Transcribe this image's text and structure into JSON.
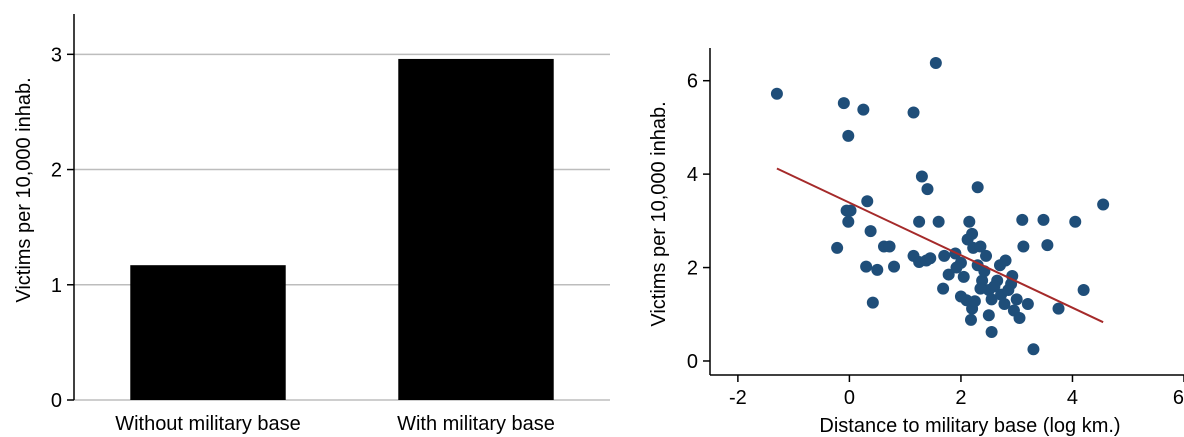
{
  "chart_data": [
    {
      "type": "bar",
      "categories": [
        "Without military base",
        "With military base"
      ],
      "values": [
        1.17,
        2.96
      ],
      "ylabel": "Victims per 10,000 inhab.",
      "xlabel": "",
      "ylim": [
        0,
        3.35
      ],
      "yticks": [
        0,
        1,
        2,
        3
      ],
      "grid": true,
      "bar_color": "#000000",
      "grid_color": "#bdbdbd"
    },
    {
      "type": "scatter",
      "xlabel": "Distance to military base (log km.)",
      "ylabel": "Victims per 10,000 inhab.",
      "xlim": [
        -2.5,
        6
      ],
      "ylim": [
        -0.3,
        6.7
      ],
      "xticks": [
        -2,
        0,
        2,
        4,
        6
      ],
      "yticks": [
        0,
        2,
        4,
        6
      ],
      "grid": false,
      "point_color": "#1f4e79",
      "fit_color": "#a52a2a",
      "fit_line": {
        "x": [
          -1.3,
          4.55
        ],
        "y": [
          4.12,
          0.83
        ]
      },
      "points": [
        [
          -1.3,
          5.72
        ],
        [
          -0.1,
          5.52
        ],
        [
          0.25,
          5.38
        ],
        [
          -0.02,
          4.82
        ],
        [
          1.55,
          6.38
        ],
        [
          1.15,
          5.32
        ],
        [
          1.3,
          3.95
        ],
        [
          1.4,
          3.68
        ],
        [
          2.3,
          3.72
        ],
        [
          0.32,
          3.42
        ],
        [
          -0.05,
          3.22
        ],
        [
          0.02,
          3.22
        ],
        [
          -0.02,
          2.98
        ],
        [
          0.38,
          2.78
        ],
        [
          0.62,
          2.45
        ],
        [
          0.72,
          2.45
        ],
        [
          -0.22,
          2.42
        ],
        [
          0.3,
          2.02
        ],
        [
          0.5,
          1.95
        ],
        [
          0.8,
          2.02
        ],
        [
          0.42,
          1.25
        ],
        [
          1.25,
          2.98
        ],
        [
          1.6,
          2.98
        ],
        [
          1.15,
          2.25
        ],
        [
          1.25,
          2.12
        ],
        [
          1.38,
          2.15
        ],
        [
          1.45,
          2.2
        ],
        [
          1.7,
          2.25
        ],
        [
          1.78,
          1.85
        ],
        [
          1.68,
          1.55
        ],
        [
          1.9,
          2.3
        ],
        [
          2.0,
          2.1
        ],
        [
          2.05,
          1.8
        ],
        [
          2.12,
          2.6
        ],
        [
          2.15,
          2.98
        ],
        [
          2.2,
          2.72
        ],
        [
          2.22,
          2.42
        ],
        [
          2.3,
          2.05
        ],
        [
          2.35,
          2.45
        ],
        [
          2.38,
          1.72
        ],
        [
          2.42,
          1.92
        ],
        [
          2.1,
          1.3
        ],
        [
          2.2,
          1.12
        ],
        [
          2.18,
          0.88
        ],
        [
          2.25,
          1.28
        ],
        [
          2.0,
          1.38
        ],
        [
          2.5,
          1.52
        ],
        [
          2.55,
          1.32
        ],
        [
          2.5,
          0.98
        ],
        [
          2.55,
          0.62
        ],
        [
          2.65,
          1.72
        ],
        [
          2.7,
          2.05
        ],
        [
          2.8,
          2.15
        ],
        [
          2.72,
          1.42
        ],
        [
          2.78,
          1.22
        ],
        [
          2.85,
          1.52
        ],
        [
          2.92,
          1.82
        ],
        [
          2.95,
          1.08
        ],
        [
          3.0,
          1.32
        ],
        [
          3.05,
          0.92
        ],
        [
          3.1,
          3.02
        ],
        [
          3.12,
          2.45
        ],
        [
          3.2,
          1.22
        ],
        [
          3.3,
          0.25
        ],
        [
          3.48,
          3.02
        ],
        [
          3.55,
          2.48
        ],
        [
          3.75,
          1.12
        ],
        [
          4.05,
          2.98
        ],
        [
          4.2,
          1.52
        ],
        [
          4.55,
          3.35
        ],
        [
          2.9,
          1.65
        ],
        [
          2.6,
          1.6
        ],
        [
          2.45,
          2.25
        ],
        [
          1.92,
          2.0
        ],
        [
          2.35,
          1.55
        ]
      ]
    }
  ]
}
